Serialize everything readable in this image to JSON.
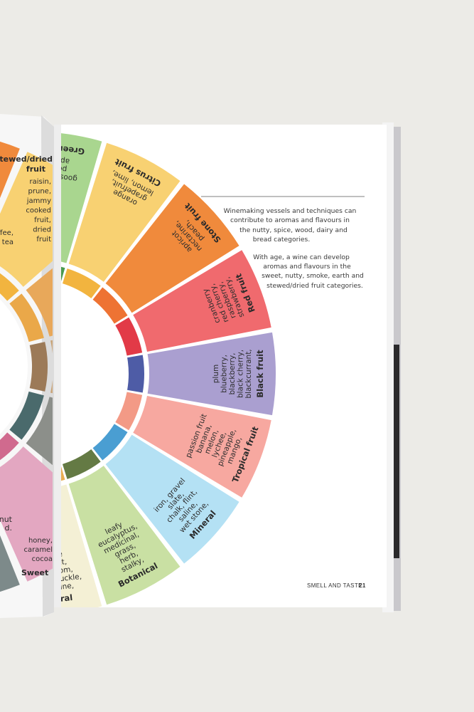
{
  "wheel_right": [
    {
      "name": "Green fruit",
      "items": [
        "apple,",
        "pear,",
        "gooseberry"
      ],
      "outer": "#a9d68f",
      "mid": "#a9d68f",
      "inner": "#4a9a4e"
    },
    {
      "name": "Citrus fruit",
      "items": [
        "lemon, lime,",
        "grapefruit,",
        "orange"
      ],
      "outer": "#f8d172",
      "mid": "#f8d172",
      "inner": "#f2b43f"
    },
    {
      "name": "Stone fruit",
      "items": [
        "peach,",
        "nectarine,",
        "apricot"
      ],
      "outer": "#f08a3c",
      "mid": "#f08a3c",
      "inner": "#ee7333"
    },
    {
      "name": "Red fruit",
      "items": [
        "strawberry,",
        "raspberry,",
        "red cherry,",
        "cranberry"
      ],
      "outer": "#f06a6e",
      "mid": "#f06a6e",
      "inner": "#e23a47"
    },
    {
      "name": "Black fruit",
      "items": [
        "blackcurrant,",
        "black cherry,",
        "blackberry,",
        "blueberry,",
        "plum"
      ],
      "outer": "#aa9fd0",
      "mid": "#aa9fd0",
      "inner": "#4e5ca6"
    },
    {
      "name": "Tropical fruit",
      "items": [
        "mango,",
        "pineapple,",
        "lychee,",
        "melon,",
        "banana,",
        "passion fruit"
      ],
      "outer": "#f7a8a0",
      "mid": "#f7a8a0",
      "inner": "#f39a86"
    },
    {
      "name": "Mineral",
      "items": [
        "wet stone,",
        "saline,",
        "chalk, flint,",
        "slate,",
        "iron, gravel"
      ],
      "outer": "#b4e1f4",
      "mid": "#b4e1f4",
      "inner": "#4a9ed2"
    },
    {
      "name": "Botanical",
      "items": [
        "stalky,",
        "herb,",
        "grass,",
        "medicinal,",
        "eucalyptus,",
        "leafy"
      ],
      "outer": "#c9e0a3",
      "mid": "#c9e0a3",
      "inner": "#647a44"
    },
    {
      "name": "Floral",
      "items": [
        "jasmine,",
        "honeysuckle,",
        "blossom,",
        "violet,",
        "rose"
      ],
      "outer": "#f4f0d5",
      "mid": "#f4f0d5",
      "inner": "#e9ad52"
    }
  ],
  "wheel_left": [
    {
      "name": "Sweet",
      "items": [
        "honey,",
        "caramel",
        "cocoa"
      ]
    },
    {
      "name": "Stewed/dried fruit",
      "items": [
        "raisin,",
        "prune,",
        "jammy",
        "cooked",
        "fruit,",
        "dried",
        "fruit"
      ]
    },
    {
      "label_fragments": [
        "nut",
        "d."
      ]
    },
    {
      "label_fragments": [
        "ffee,",
        "tea"
      ]
    }
  ],
  "notes": {
    "p1": [
      "Winemaking vessels and techniques can",
      "contribute to aromas and flavours in",
      "the nutty, spice, wood, dairy and",
      "bread categories."
    ],
    "p2": [
      "With age, a wine can develop",
      "aromas and flavours in the",
      "sweet, nutty, smoke, earth and",
      "stewed/dried fruit categories."
    ]
  },
  "footer": {
    "section": "SMELL AND TASTE",
    "page": "21"
  },
  "colors": {
    "background": "#ecebe7",
    "page": "#ffffff",
    "ink": "#2b2b2b"
  }
}
